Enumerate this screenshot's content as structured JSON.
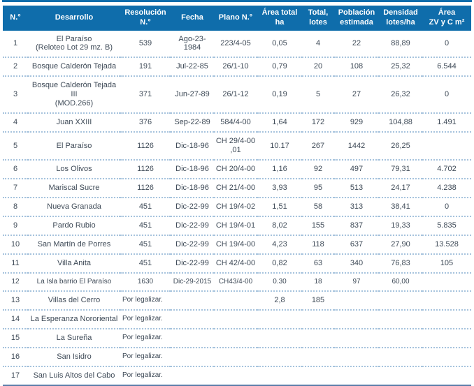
{
  "colors": {
    "header_bg": "#0f6dab",
    "header_text": "#ffffff",
    "body_text": "#3e4a57",
    "row_divider_dotted": "#a6c3dd",
    "bottom_rule": "#5b7da9",
    "top_rule": "#0f6dab"
  },
  "table": {
    "pending_label": "Por legalizar.",
    "columns": [
      {
        "id": "numero",
        "label": "N.°"
      },
      {
        "id": "desarrollo",
        "label": "Desarrollo"
      },
      {
        "id": "resolucion",
        "label": "Resolución\nN.°"
      },
      {
        "id": "fecha",
        "label": "Fecha"
      },
      {
        "id": "plano",
        "label": "Plano N.°"
      },
      {
        "id": "area_total",
        "label": "Área total\nha"
      },
      {
        "id": "total_lotes",
        "label": "Total,\nlotes"
      },
      {
        "id": "poblacion",
        "label": "Población\nestimada"
      },
      {
        "id": "densidad",
        "label": "Densidad\nlotes/ha"
      },
      {
        "id": "area_zv",
        "label": "Área\nZV y C m²"
      }
    ],
    "rows": [
      {
        "variant": "regular",
        "cells": [
          "1",
          "El Paraíso\n(Reloteo Lot 29 mz. B)",
          "539",
          "Ago-23-1984",
          "223/4-05",
          "0,05",
          "4",
          "22",
          "88,89",
          "0"
        ]
      },
      {
        "variant": "regular",
        "cells": [
          "2",
          "Bosque Calderón Tejada",
          "191",
          "Jul-22-85",
          "26/1-10",
          "0,79",
          "20",
          "108",
          "25,32",
          "6.544"
        ]
      },
      {
        "variant": "regular",
        "cells": [
          "3",
          "Bosque Calderón Tejada III\n(MOD.266)",
          "371",
          "Jun-27-89",
          "26/1-12",
          "0,19",
          "5",
          "27",
          "26,32",
          "0"
        ]
      },
      {
        "variant": "regular",
        "cells": [
          "4",
          "Juan XXIII",
          "376",
          "Sep-22-89",
          "584/4-00",
          "1,64",
          "172",
          "929",
          "104,88",
          "1.491"
        ]
      },
      {
        "variant": "regular",
        "cells": [
          "5",
          "El Paraíso",
          "1126",
          "Dic-18-96",
          "CH 29/4-00 ,01",
          "10.17",
          "267",
          "1442",
          "26,25",
          ""
        ]
      },
      {
        "variant": "regular",
        "cells": [
          "6",
          "Los Olivos",
          "1126",
          "Dic-18-96",
          "CH 20/4-00",
          "1,16",
          "92",
          "497",
          "79,31",
          "4.702"
        ]
      },
      {
        "variant": "regular",
        "cells": [
          "7",
          "Mariscal Sucre",
          "1126",
          "Dic-18-96",
          "CH 21/4-00",
          "3,93",
          "95",
          "513",
          "24,17",
          "4.238"
        ]
      },
      {
        "variant": "regular",
        "cells": [
          "8",
          "Nueva Granada",
          "451",
          "Dic-22-99",
          "CH 19/4-02",
          "1,51",
          "58",
          "313",
          "38,41",
          "0"
        ]
      },
      {
        "variant": "regular",
        "cells": [
          "9",
          "Pardo Rubio",
          "451",
          "Dic-22-99",
          "CH 19/4-01",
          "8,02",
          "155",
          "837",
          "19,33",
          "5.835"
        ]
      },
      {
        "variant": "regular",
        "cells": [
          "10",
          "San Martín de Porres",
          "451",
          "Dic-22-99",
          "CH 19/4-00",
          "4,23",
          "118",
          "637",
          "27,90",
          "13.528"
        ]
      },
      {
        "variant": "regular",
        "cells": [
          "11",
          "Villa Anita",
          "451",
          "Dic-22-99",
          "CH 42/4-00",
          "0,82",
          "63",
          "340",
          "76,83",
          "105"
        ]
      },
      {
        "variant": "light",
        "cells": [
          "12",
          "La Isla barrio El Paraíso",
          "1630",
          "Dic-29-2015",
          "CH43/4-00",
          "0.30",
          "18",
          "97",
          "60,00",
          ""
        ]
      },
      {
        "variant": "regular",
        "cells": [
          "13",
          "Villas del Cerro",
          "Por legalizar.",
          "",
          "",
          "2,8",
          "185",
          "",
          "",
          ""
        ]
      },
      {
        "variant": "regular",
        "cells": [
          "14",
          "La Esperanza Nororiental",
          "Por legalizar.",
          "",
          "",
          "",
          "",
          "",
          "",
          ""
        ]
      },
      {
        "variant": "regular",
        "cells": [
          "15",
          "La Sureña",
          "Por legalizar.",
          "",
          "",
          "",
          "",
          "",
          "",
          ""
        ]
      },
      {
        "variant": "regular",
        "cells": [
          "16",
          "San Isidro",
          "Por legalizar.",
          "",
          "",
          "",
          "",
          "",
          "",
          ""
        ]
      },
      {
        "variant": "regular",
        "cells": [
          "17",
          "San Luis Altos del Cabo",
          "Por legalizar.",
          "",
          "",
          "",
          "",
          "",
          "",
          ""
        ]
      }
    ]
  }
}
